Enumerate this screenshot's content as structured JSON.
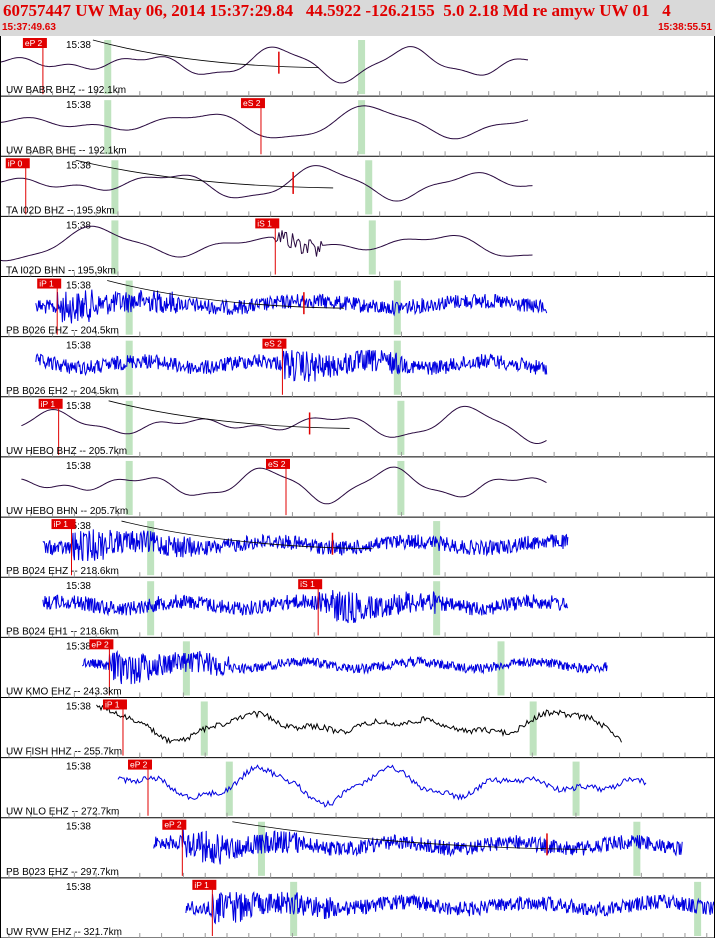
{
  "header": {
    "title": "60757447 UW May 06, 2014 15:37:29.84   44.5922 -126.2155  5.0 2.18 Md re amyw UW 01   4",
    "start_time": "15:37:49.63",
    "end_time": "15:38:55.51"
  },
  "colors": {
    "header_bg": "#d9d9d9",
    "header_text": "#e00000",
    "pick": "#e00000",
    "window_band": "#bfe3bf",
    "trace_blue": "#0000e0",
    "trace_purple": "#2a0a40",
    "trace_black": "#000000",
    "grid": "#9a9a9a"
  },
  "chart_data": {
    "type": "line",
    "time_range": [
      "15:37:49.63",
      "15:38:55.51"
    ],
    "minute_tick_label": "15:38",
    "traces": [
      {
        "label": "UW BABR BHZ -- 192.1km",
        "style": "smooth",
        "color": "purple",
        "start": 0.0,
        "end": 0.74,
        "pick_label": "eP 2",
        "pick_time": 0.06,
        "bands": [
          0.15,
          0.505
        ],
        "decay": true,
        "secondary_pick": 0.39
      },
      {
        "label": "UW BABR BHE -- 192.1km",
        "style": "smooth",
        "color": "purple",
        "start": 0.0,
        "end": 0.74,
        "pick_label": "eS 2",
        "pick_time": 0.365,
        "bands": [
          0.15,
          0.505
        ],
        "decay": false
      },
      {
        "label": "TA I02D BHZ -- 195.9km",
        "style": "smooth",
        "color": "purple",
        "start": 0.0,
        "end": 0.745,
        "pick_label": "iP 0",
        "pick_time": 0.036,
        "bands": [
          0.16,
          0.515
        ],
        "decay": true,
        "secondary_pick": 0.41
      },
      {
        "label": "TA I02D BHN -- 195.9km",
        "style": "smooth",
        "color": "purple",
        "start": 0.0,
        "end": 0.745,
        "pick_label": "iS 1",
        "pick_time": 0.385,
        "bands": [
          0.16,
          0.52
        ],
        "decay": false,
        "burst": 0.39
      },
      {
        "label": "PB B026 EHZ -- 204.5km",
        "style": "noise",
        "color": "blue",
        "start": 0.05,
        "end": 0.765,
        "pick_label": "iP 1",
        "pick_time": 0.08,
        "bands": [
          0.18,
          0.555
        ],
        "decay": true,
        "secondary_pick": 0.425
      },
      {
        "label": "PB B026 EH2 -- 204.5km",
        "style": "noise",
        "color": "blue",
        "start": 0.05,
        "end": 0.765,
        "pick_label": "eS 2",
        "pick_time": 0.395,
        "bands": [
          0.18,
          0.555
        ],
        "decay": false
      },
      {
        "label": "UW HEBO BHZ -- 205.7km",
        "style": "smooth",
        "color": "purple",
        "start": 0.03,
        "end": 0.765,
        "pick_label": "iP 1",
        "pick_time": 0.082,
        "bands": [
          0.18,
          0.56
        ],
        "decay": true,
        "secondary_pick": 0.433
      },
      {
        "label": "UW HEBO BHN -- 205.7km",
        "style": "smooth",
        "color": "purple",
        "start": 0.03,
        "end": 0.765,
        "pick_label": "eS 2",
        "pick_time": 0.4,
        "bands": [
          0.18,
          0.56
        ],
        "decay": false
      },
      {
        "label": "PB B024 EHZ -- 218.6km",
        "style": "noise",
        "color": "blue",
        "start": 0.06,
        "end": 0.795,
        "pick_label": "iP 1",
        "pick_time": 0.1,
        "bands": [
          0.21,
          0.61
        ],
        "decay": true,
        "secondary_pick": 0.465
      },
      {
        "label": "PB B024 EH1 -- 218.6km",
        "style": "noise",
        "color": "blue",
        "start": 0.06,
        "end": 0.795,
        "pick_label": "iS 1",
        "pick_time": 0.445,
        "bands": [
          0.21,
          0.61
        ],
        "decay": false
      },
      {
        "label": "UW KMO EHZ -- 243.3km",
        "style": "noise-light",
        "color": "blue",
        "start": 0.115,
        "end": 0.85,
        "pick_label": "eP 2",
        "pick_time": 0.153,
        "bands": [
          0.26,
          0.7
        ],
        "decay": false
      },
      {
        "label": "UW FISH HHZ -- 255.7km",
        "style": "smooth-jagged",
        "color": "black",
        "start": 0.135,
        "end": 0.87,
        "pick_label": "iP 1",
        "pick_time": 0.172,
        "bands": [
          0.285,
          0.745
        ],
        "decay": false
      },
      {
        "label": "UW NLO EHZ -- 272.7km",
        "style": "smooth-noisy",
        "color": "blue",
        "start": 0.165,
        "end": 0.905,
        "pick_label": "eP 2",
        "pick_time": 0.207,
        "bands": [
          0.32,
          0.805
        ],
        "decay": false
      },
      {
        "label": "PB B023 EHZ -- 297.7km",
        "style": "noise",
        "color": "blue",
        "start": 0.215,
        "end": 0.955,
        "pick_label": "eP 2",
        "pick_time": 0.255,
        "bands": [
          0.365,
          0.89
        ],
        "decay": true,
        "secondary_pick": 0.765
      },
      {
        "label": "UW RVW EHZ -- 321.7km",
        "style": "noise",
        "color": "blue",
        "start": 0.26,
        "end": 1.0,
        "pick_label": "iP 1",
        "pick_time": 0.297,
        "bands": [
          0.41,
          0.975
        ],
        "decay": false
      }
    ]
  }
}
